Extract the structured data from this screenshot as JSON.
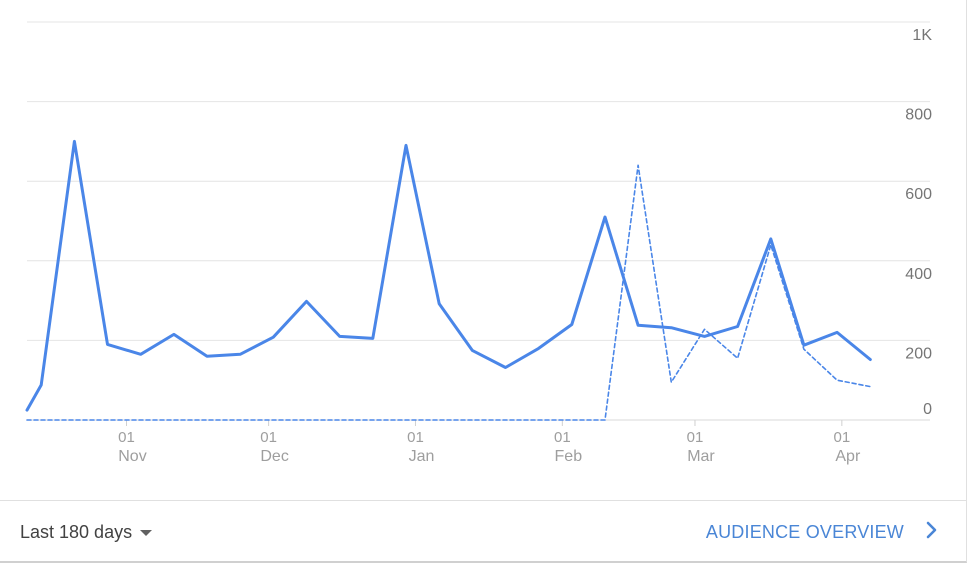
{
  "chart_data": {
    "type": "line",
    "y_ticks": [
      {
        "value": 0,
        "label": "0"
      },
      {
        "value": 200,
        "label": "200"
      },
      {
        "value": 400,
        "label": "400"
      },
      {
        "value": 600,
        "label": "600"
      },
      {
        "value": 800,
        "label": "800"
      },
      {
        "value": 1000,
        "label": "1K"
      }
    ],
    "ylim": [
      0,
      1000
    ],
    "x_ticks": [
      {
        "day": "01",
        "month": "Nov",
        "date": "2017-11-01"
      },
      {
        "day": "01",
        "month": "Dec",
        "date": "2017-12-01"
      },
      {
        "day": "01",
        "month": "Jan",
        "date": "2018-01-01"
      },
      {
        "day": "01",
        "month": "Feb",
        "date": "2018-02-01"
      },
      {
        "day": "01",
        "month": "Mar",
        "date": "2018-03-01"
      },
      {
        "day": "01",
        "month": "Apr",
        "date": "2018-04-01"
      }
    ],
    "x_range": [
      "2017-10-11",
      "2018-04-08"
    ],
    "grid": true,
    "series": [
      {
        "style": "solid",
        "color": "#4a86e8",
        "points": [
          {
            "x": "2017-10-11",
            "y": 25
          },
          {
            "x": "2017-10-14",
            "y": 88
          },
          {
            "x": "2017-10-21",
            "y": 700
          },
          {
            "x": "2017-10-28",
            "y": 190
          },
          {
            "x": "2017-11-04",
            "y": 165
          },
          {
            "x": "2017-11-11",
            "y": 215
          },
          {
            "x": "2017-11-18",
            "y": 160
          },
          {
            "x": "2017-11-25",
            "y": 165
          },
          {
            "x": "2017-12-02",
            "y": 208
          },
          {
            "x": "2017-12-09",
            "y": 298
          },
          {
            "x": "2017-12-16",
            "y": 210
          },
          {
            "x": "2017-12-23",
            "y": 205
          },
          {
            "x": "2017-12-30",
            "y": 690
          },
          {
            "x": "2018-01-06",
            "y": 292
          },
          {
            "x": "2018-01-13",
            "y": 175
          },
          {
            "x": "2018-01-20",
            "y": 132
          },
          {
            "x": "2018-01-27",
            "y": 180
          },
          {
            "x": "2018-02-03",
            "y": 240
          },
          {
            "x": "2018-02-10",
            "y": 510
          },
          {
            "x": "2018-02-17",
            "y": 238
          },
          {
            "x": "2018-02-24",
            "y": 232
          },
          {
            "x": "2018-03-03",
            "y": 210
          },
          {
            "x": "2018-03-10",
            "y": 235
          },
          {
            "x": "2018-03-17",
            "y": 455
          },
          {
            "x": "2018-03-24",
            "y": 188
          },
          {
            "x": "2018-03-31",
            "y": 220
          },
          {
            "x": "2018-04-07",
            "y": 152
          }
        ]
      },
      {
        "style": "dashed",
        "color": "#4a86e8",
        "points": [
          {
            "x": "2017-10-11",
            "y": 0
          },
          {
            "x": "2018-02-10",
            "y": 0
          },
          {
            "x": "2018-02-17",
            "y": 640
          },
          {
            "x": "2018-02-24",
            "y": 95
          },
          {
            "x": "2018-03-03",
            "y": 228
          },
          {
            "x": "2018-03-10",
            "y": 155
          },
          {
            "x": "2018-03-17",
            "y": 440
          },
          {
            "x": "2018-03-24",
            "y": 178
          },
          {
            "x": "2018-03-31",
            "y": 100
          },
          {
            "x": "2018-04-07",
            "y": 84
          }
        ]
      }
    ]
  },
  "footer": {
    "range_label": "Last 180 days",
    "overview_label": "AUDIENCE OVERVIEW"
  },
  "icons": {
    "range_caret": "caret-down-icon",
    "overview_arrow": "chevron-right-icon"
  }
}
